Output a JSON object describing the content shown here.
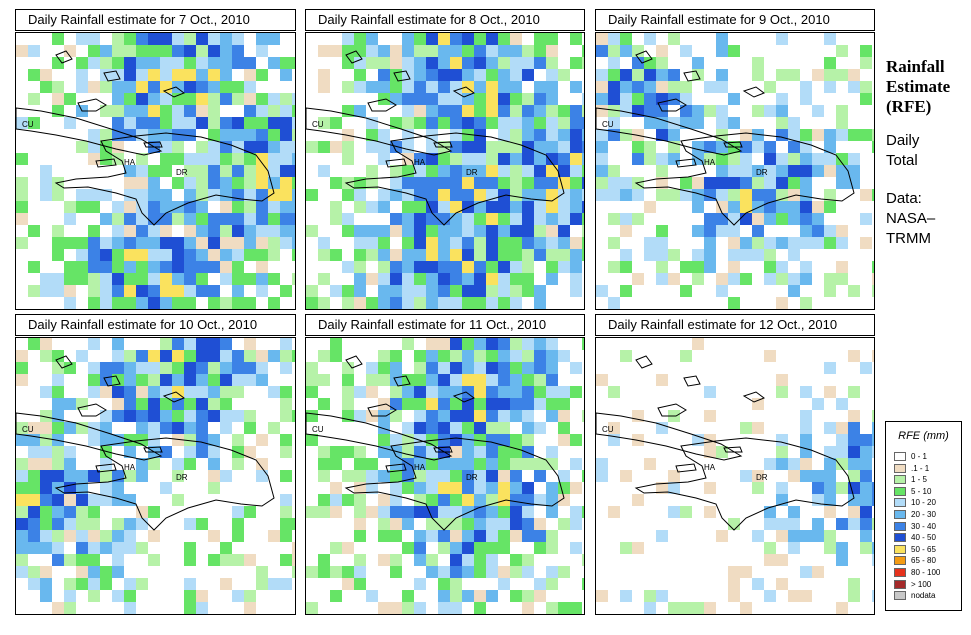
{
  "panels": [
    {
      "title": "Daily Rainfall estimate for  7 Oct., 2010",
      "intensity": 0.5,
      "wet_areas": [
        "north",
        "east",
        "south"
      ]
    },
    {
      "title": "Daily Rainfall estimate for  8 Oct., 2010",
      "intensity": 0.55,
      "wet_areas": [
        "north",
        "east",
        "center",
        "south"
      ]
    },
    {
      "title": "Daily Rainfall estimate for  9 Oct., 2010",
      "intensity": 0.3,
      "wet_areas": [
        "northwest",
        "center"
      ]
    },
    {
      "title": "Daily Rainfall estimate for  10 Oct., 2010",
      "intensity": 0.45,
      "wet_areas": [
        "west",
        "north"
      ]
    },
    {
      "title": "Daily Rainfall estimate for  11 Oct., 2010",
      "intensity": 0.5,
      "wet_areas": [
        "north",
        "center"
      ]
    },
    {
      "title": "Daily Rainfall estimate for  12 Oct., 2010",
      "intensity": 0.12,
      "wet_areas": [
        "east"
      ]
    }
  ],
  "map_labels": {
    "cuba": "CU",
    "haiti": "HA",
    "dominican_republic": "DR"
  },
  "side": {
    "title_line1": "Rainfall",
    "title_line2": "Estimate",
    "title_line3": "(RFE)",
    "subtitle_line1": "Daily",
    "subtitle_line2": "Total",
    "source_line1": "Data:",
    "source_line2": "NASA–",
    "source_line3": "TRMM"
  },
  "legend": {
    "title": "RFE (mm)",
    "items": [
      {
        "label": "0 - 1",
        "color": "#ffffff"
      },
      {
        "label": ".1 - 1",
        "color": "#f0dcc2"
      },
      {
        "label": "1 - 5",
        "color": "#b6f2a8"
      },
      {
        "label": "5 - 10",
        "color": "#66e466"
      },
      {
        "label": "10 - 20",
        "color": "#b2dcf8"
      },
      {
        "label": "20 - 30",
        "color": "#69b8ee"
      },
      {
        "label": "30 - 40",
        "color": "#3c82e6"
      },
      {
        "label": "40 - 50",
        "color": "#1f4fd4"
      },
      {
        "label": "50 - 65",
        "color": "#fae25e"
      },
      {
        "label": "65 - 80",
        "color": "#f49b14"
      },
      {
        "label": "80 - 100",
        "color": "#e6321c"
      },
      {
        "label": "> 100",
        "color": "#a52a2a"
      },
      {
        "label": "nodata",
        "color": "#c8c8c8"
      }
    ]
  }
}
